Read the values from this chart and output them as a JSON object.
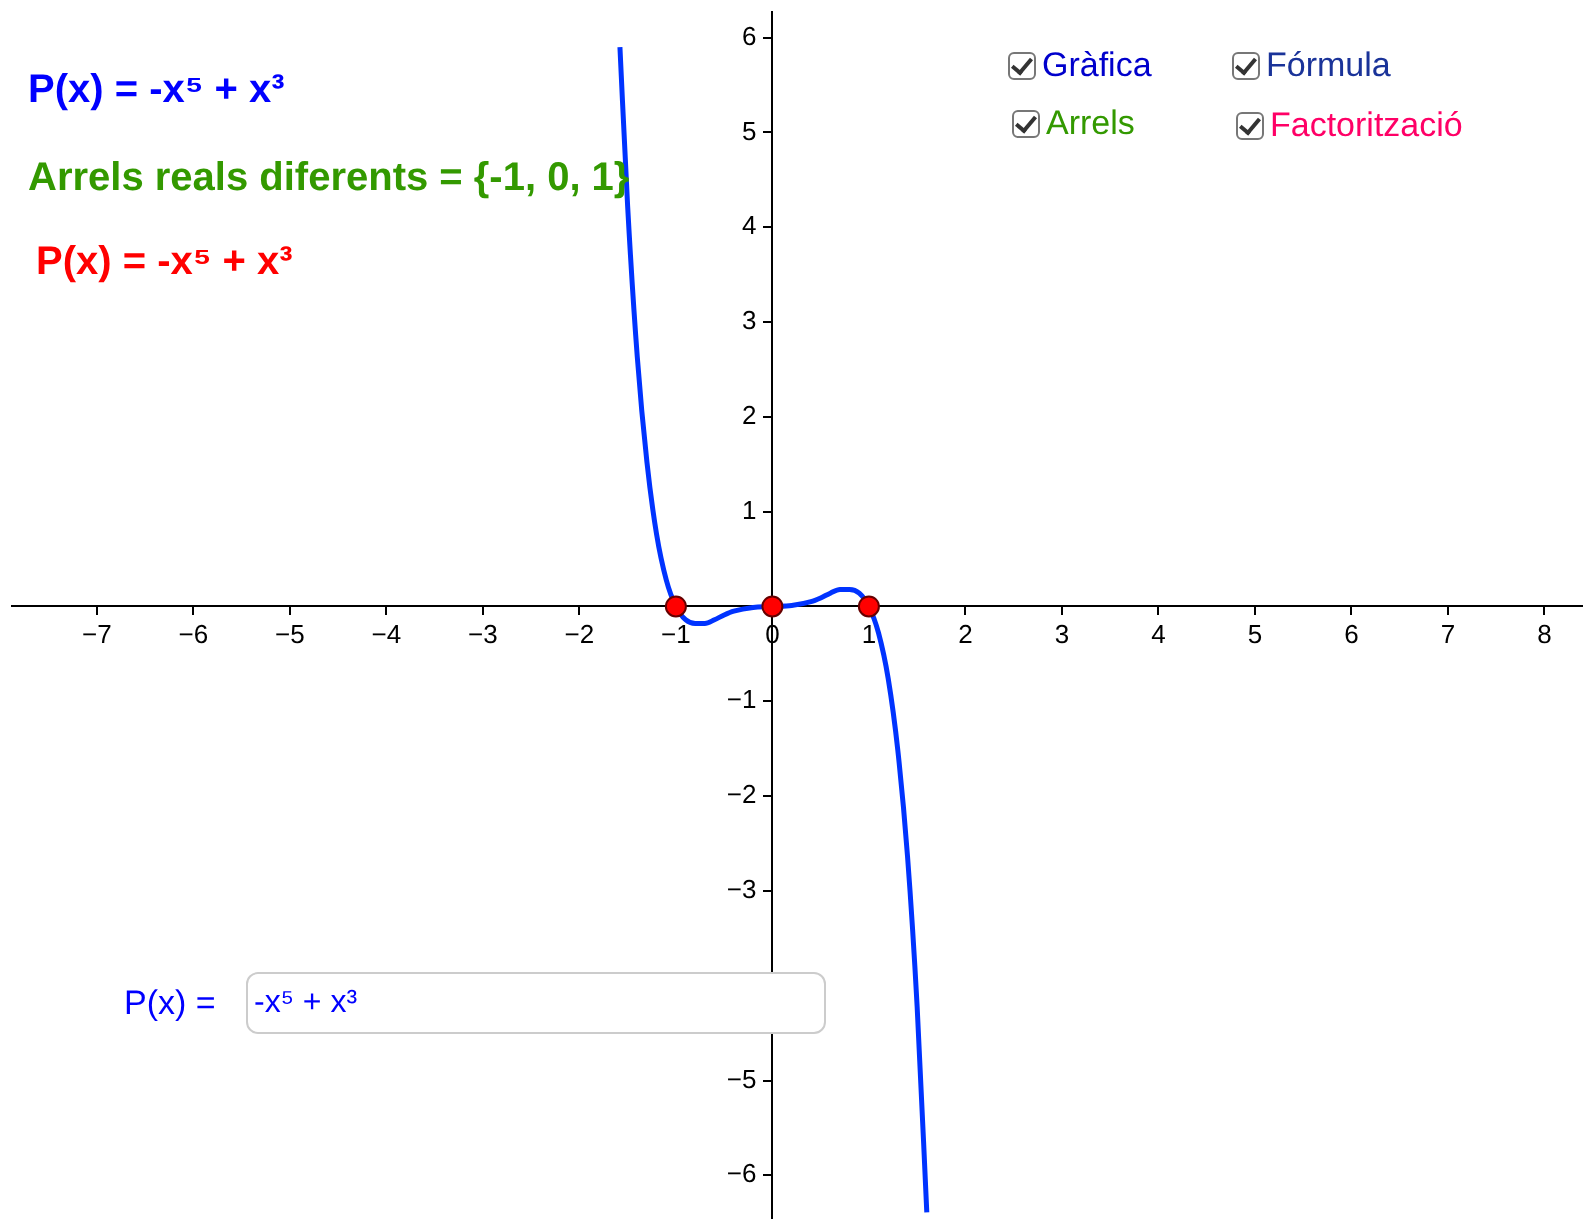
{
  "chart_data": {
    "type": "line",
    "annotations": [
      "P(x) = -x⁵ + x³",
      "Arrels reals diferents = {-1, 0, 1}",
      "P(x) = -x⁵ + x³",
      "Gràfica",
      "Fórmula",
      "Arrels",
      "Factorització",
      "P(x) =",
      "-x⁵ + x³"
    ],
    "xlim": [
      -7.88,
      8.39
    ],
    "ylim": [
      -6.45,
      6.27
    ],
    "xticks": [
      -7,
      -6,
      -5,
      -4,
      -3,
      -2,
      -1,
      0,
      1,
      2,
      3,
      4,
      5,
      6,
      7,
      8
    ],
    "yticks": [
      -6,
      -5,
      {
        "value": -4,
        "label": null
      },
      -3,
      -2,
      -1,
      {
        "value": 0,
        "label": null
      },
      1,
      2,
      3,
      4,
      5,
      6
    ],
    "grid": false,
    "legend": false,
    "series": [
      {
        "type": "line",
        "color": "#0033ff",
        "marker": "none",
        "x": [
          -1.58,
          -1.5,
          -1.4,
          -1.3,
          -1.2,
          -1.1,
          -1.0,
          -0.9,
          -0.8,
          -0.7,
          -0.6,
          -0.5,
          -0.4,
          -0.2,
          0,
          0.2,
          0.4,
          0.5,
          0.6,
          0.7,
          0.8,
          0.9,
          1.0,
          1.1,
          1.2,
          1.3,
          1.4,
          1.5,
          1.6
        ],
        "values": [
          5.9,
          4.22,
          2.63,
          1.52,
          0.76,
          0.28,
          0,
          -0.14,
          -0.18,
          -0.18,
          -0.14,
          -0.09,
          -0.05,
          -0.01,
          0,
          0.01,
          0.05,
          0.09,
          0.14,
          0.18,
          0.18,
          0.14,
          0,
          -0.28,
          -0.76,
          -1.52,
          -2.63,
          -4.22,
          -6.39
        ]
      },
      {
        "type": "scatter",
        "color": "#ff0000",
        "marker": "circle",
        "x": [
          -1,
          0,
          1
        ],
        "values": [
          0,
          0,
          0
        ]
      }
    ]
  }
}
